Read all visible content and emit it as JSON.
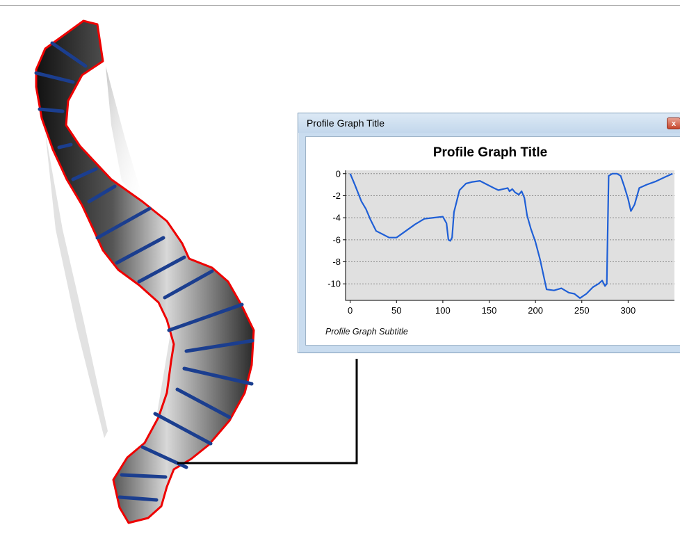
{
  "profile_window": {
    "title": "Profile Graph Title",
    "close_glyph": "x",
    "close_icon": "close-icon"
  },
  "chart_data": {
    "type": "line",
    "title": "Profile Graph Title",
    "subtitle": "Profile Graph Subtitle",
    "xlabel": "",
    "ylabel": "",
    "xlim": [
      -5,
      350
    ],
    "ylim": [
      -11.5,
      0.3
    ],
    "x_ticks": [
      0,
      50,
      100,
      150,
      200,
      250,
      300
    ],
    "y_ticks": [
      0,
      -2,
      -4,
      -6,
      -8,
      -10
    ],
    "grid": "horizontal dotted",
    "colors": {
      "line": "#1f5fd6",
      "plot_bg": "#e0e0e0"
    },
    "series": [
      {
        "x": [
          0,
          5,
          12,
          17,
          22,
          28,
          35,
          42,
          50,
          60,
          70,
          80,
          90,
          100,
          104,
          106,
          108,
          110,
          112,
          118,
          125,
          132,
          140,
          148,
          155,
          160,
          165,
          170,
          172,
          175,
          178,
          182,
          185,
          188,
          191,
          195,
          200,
          205,
          212,
          220,
          228,
          236,
          242,
          248,
          255,
          262,
          268,
          272,
          275,
          277,
          279,
          283,
          288,
          292,
          296,
          300,
          303,
          307,
          312,
          320,
          330,
          340,
          348
        ],
        "y": [
          0,
          -1,
          -2.5,
          -3.2,
          -4.2,
          -5.2,
          -5.5,
          -5.8,
          -5.8,
          -5.2,
          -4.6,
          -4.1,
          -4.0,
          -3.9,
          -4.5,
          -6.0,
          -6.1,
          -5.8,
          -3.5,
          -1.5,
          -0.9,
          -0.75,
          -0.65,
          -1.0,
          -1.3,
          -1.5,
          -1.4,
          -1.3,
          -1.6,
          -1.4,
          -1.7,
          -1.9,
          -1.6,
          -2.2,
          -3.8,
          -5.0,
          -6.2,
          -7.8,
          -10.5,
          -10.6,
          -10.4,
          -10.8,
          -10.9,
          -11.3,
          -10.9,
          -10.3,
          -10.0,
          -9.7,
          -10.2,
          -10.0,
          -0.2,
          0,
          0,
          -0.2,
          -1.2,
          -2.3,
          -3.4,
          -2.8,
          -1.3,
          -1.0,
          -0.7,
          -0.3,
          0
        ]
      }
    ]
  }
}
